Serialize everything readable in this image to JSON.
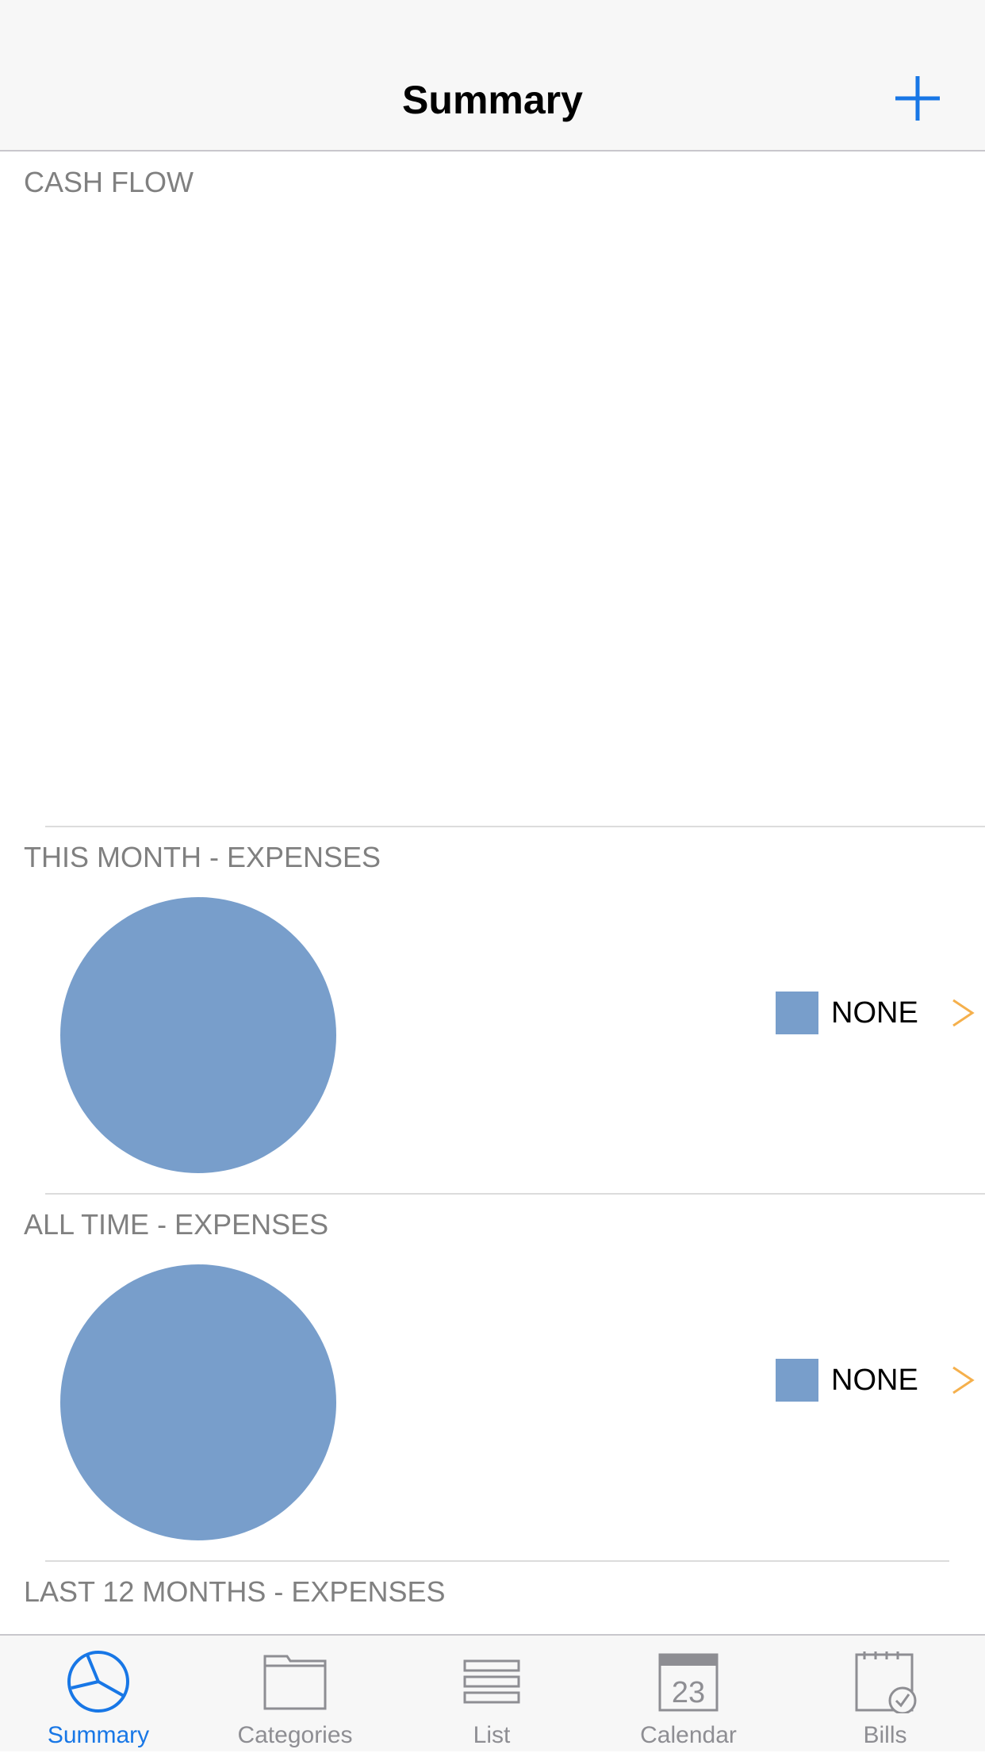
{
  "nav": {
    "title": "Summary",
    "add_icon": "plus-icon"
  },
  "sections": {
    "cash_flow": {
      "label": "CASH FLOW"
    },
    "this_month": {
      "label": "THIS MONTH - EXPENSES",
      "legend": [
        {
          "label": "NONE",
          "color": "#789ecb"
        }
      ]
    },
    "all_time": {
      "label": "ALL TIME - EXPENSES",
      "legend": [
        {
          "label": "NONE",
          "color": "#789ecb"
        }
      ]
    },
    "last_12_months": {
      "label": "LAST 12 MONTHS - EXPENSES"
    }
  },
  "colors": {
    "accent": "#1877e6",
    "pie": "#789ecb",
    "chevron": "#f5b04c",
    "inactive": "#8e8e93"
  },
  "tabs": [
    {
      "label": "Summary",
      "icon": "pie-chart-icon",
      "active": true
    },
    {
      "label": "Categories",
      "icon": "folder-icon",
      "active": false
    },
    {
      "label": "List",
      "icon": "list-icon",
      "active": false
    },
    {
      "label": "Calendar",
      "icon": "calendar-icon",
      "active": false,
      "icon_text": "23"
    },
    {
      "label": "Bills",
      "icon": "bills-check-icon",
      "active": false
    }
  ],
  "chart_data": [
    {
      "type": "pie",
      "title": "THIS MONTH - EXPENSES",
      "categories": [
        "NONE"
      ],
      "values": [
        100
      ],
      "legend": "right"
    },
    {
      "type": "pie",
      "title": "ALL TIME - EXPENSES",
      "categories": [
        "NONE"
      ],
      "values": [
        100
      ],
      "legend": "right"
    }
  ]
}
